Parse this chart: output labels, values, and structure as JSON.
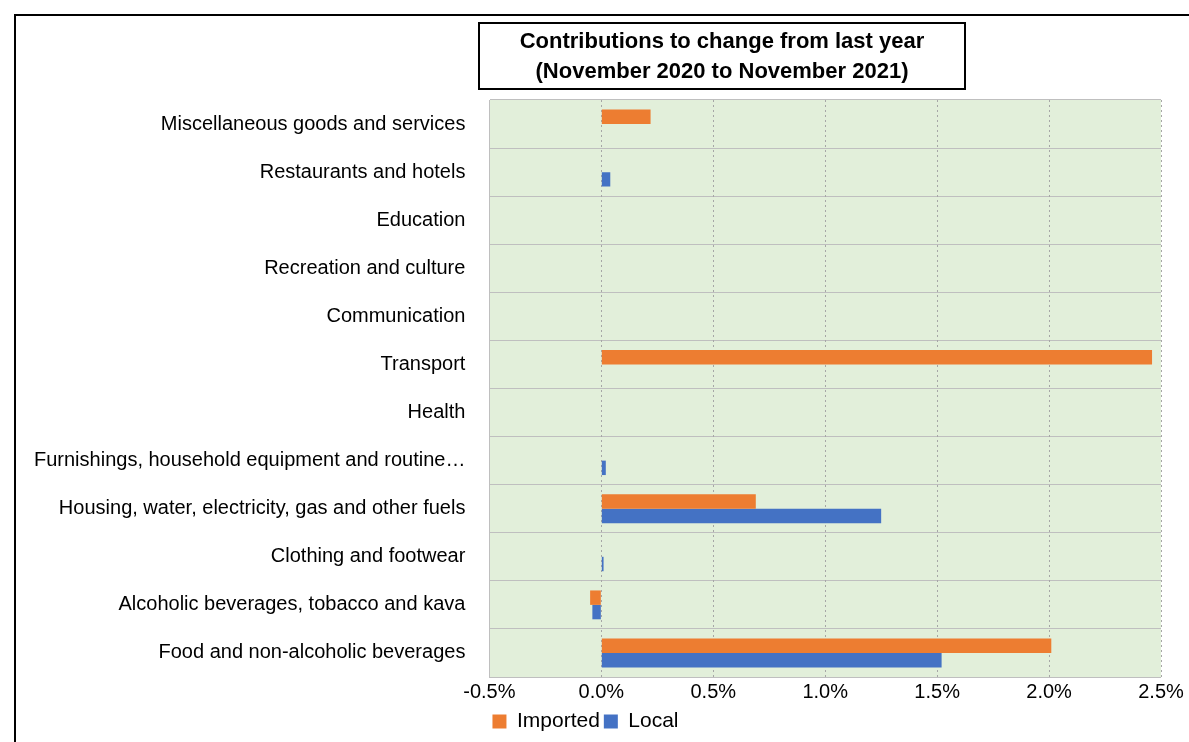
{
  "chart_data": {
    "type": "bar",
    "orientation": "horizontal",
    "title": "Contributions to change from last year\n(November 2020 to November 2021)",
    "categories": [
      "Miscellaneous goods and services",
      "Restaurants and hotels",
      "Education",
      "Recreation and culture",
      "Communication",
      "Transport",
      "Health",
      "Furnishings, household equipment and routine…",
      "Housing, water, electricity, gas and other fuels",
      "Clothing and footwear",
      "Alcoholic beverages, tobacco and kava",
      "Food and non-alcoholic beverages"
    ],
    "series": [
      {
        "name": "Imported",
        "color": "#ed7d31",
        "values": [
          0.22,
          null,
          null,
          null,
          null,
          2.46,
          null,
          null,
          0.69,
          null,
          -0.05,
          2.01
        ]
      },
      {
        "name": "Local",
        "color": "#4472c4",
        "values": [
          null,
          0.04,
          null,
          null,
          null,
          null,
          null,
          0.02,
          1.25,
          0.01,
          -0.04,
          1.52
        ]
      }
    ],
    "xlim": [
      -0.5,
      2.5
    ],
    "xticks": [
      {
        "value": -0.5,
        "label": "-0.5%"
      },
      {
        "value": 0,
        "label": "0.0%"
      },
      {
        "value": 0.5,
        "label": "0.5%"
      },
      {
        "value": 1,
        "label": "1.0%"
      },
      {
        "value": 1.5,
        "label": "1.5%"
      },
      {
        "value": 2,
        "label": "2.0%"
      },
      {
        "value": 2.5,
        "label": "2.5%"
      }
    ],
    "grid": true,
    "legend": "bottom"
  }
}
